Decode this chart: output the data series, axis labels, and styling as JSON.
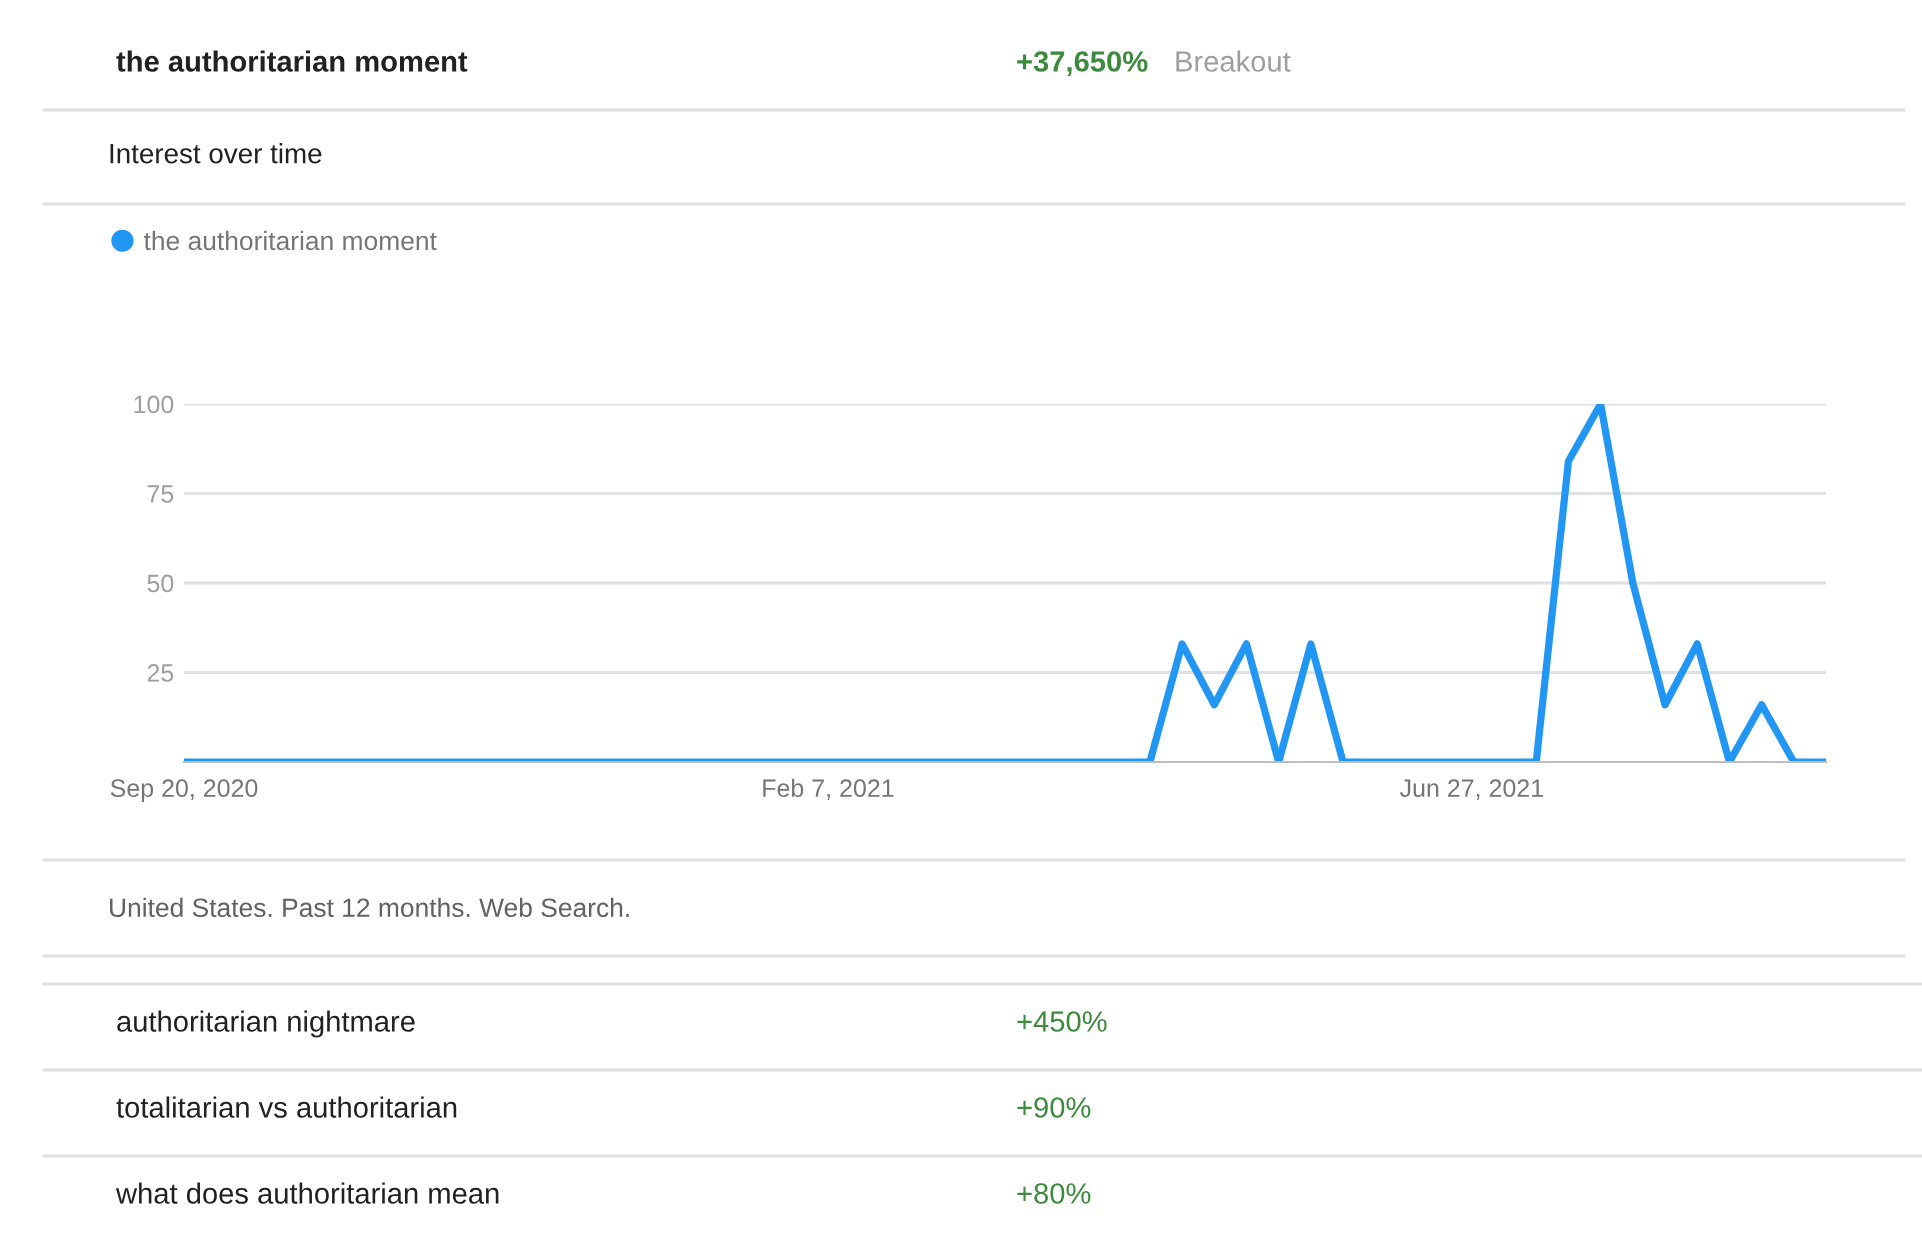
{
  "chart_data": {
    "type": "line",
    "title": "Interest over time",
    "x": [
      "2020-09-20",
      "2020-09-27",
      "2020-10-04",
      "2020-10-11",
      "2020-10-18",
      "2020-10-25",
      "2020-11-01",
      "2020-11-08",
      "2020-11-15",
      "2020-11-22",
      "2020-11-29",
      "2020-12-06",
      "2020-12-13",
      "2020-12-20",
      "2020-12-27",
      "2021-01-03",
      "2021-01-10",
      "2021-01-17",
      "2021-01-24",
      "2021-01-31",
      "2021-02-07",
      "2021-02-14",
      "2021-02-21",
      "2021-02-28",
      "2021-03-07",
      "2021-03-14",
      "2021-03-21",
      "2021-03-28",
      "2021-04-04",
      "2021-04-11",
      "2021-04-18",
      "2021-04-25",
      "2021-05-02",
      "2021-05-09",
      "2021-05-16",
      "2021-05-23",
      "2021-05-30",
      "2021-06-06",
      "2021-06-13",
      "2021-06-20",
      "2021-06-27",
      "2021-07-04",
      "2021-07-11",
      "2021-07-18",
      "2021-07-25",
      "2021-08-01",
      "2021-08-08",
      "2021-08-15",
      "2021-08-22",
      "2021-08-29",
      "2021-09-05",
      "2021-09-12"
    ],
    "series": [
      {
        "name": "the authoritarian moment",
        "color": "#2196f3",
        "values": [
          0,
          0,
          0,
          0,
          0,
          0,
          0,
          0,
          0,
          0,
          0,
          0,
          0,
          0,
          0,
          0,
          0,
          0,
          0,
          0,
          0,
          0,
          0,
          0,
          0,
          0,
          0,
          0,
          0,
          0,
          0,
          33,
          16,
          33,
          0,
          33,
          0,
          0,
          0,
          0,
          0,
          0,
          0,
          84,
          100,
          50,
          16,
          33,
          0,
          16,
          0,
          0
        ]
      }
    ],
    "xlim": [
      "2020-09-20",
      "2021-09-12"
    ],
    "xticks": [
      {
        "value": "2020-09-20",
        "label": "Sep 20, 2020"
      },
      {
        "value": "2021-02-07",
        "label": "Feb 7, 2021"
      },
      {
        "value": "2021-06-27",
        "label": "Jun 27, 2021"
      }
    ],
    "ylim": [
      0,
      100
    ],
    "yticks": [
      25,
      50,
      75,
      100
    ],
    "grid": "y",
    "legend": "top left",
    "marker": "none",
    "line_style": "solid",
    "annotations": [
      "the authoritarian moment",
      "+37,650%",
      "Breakout",
      "United States. Past 12 months. Web Search.",
      "authoritarian nightmare",
      "+450%",
      "totalitarian vs authoritarian",
      "+90%",
      "what does authoritarian mean",
      "+80%"
    ]
  }
}
